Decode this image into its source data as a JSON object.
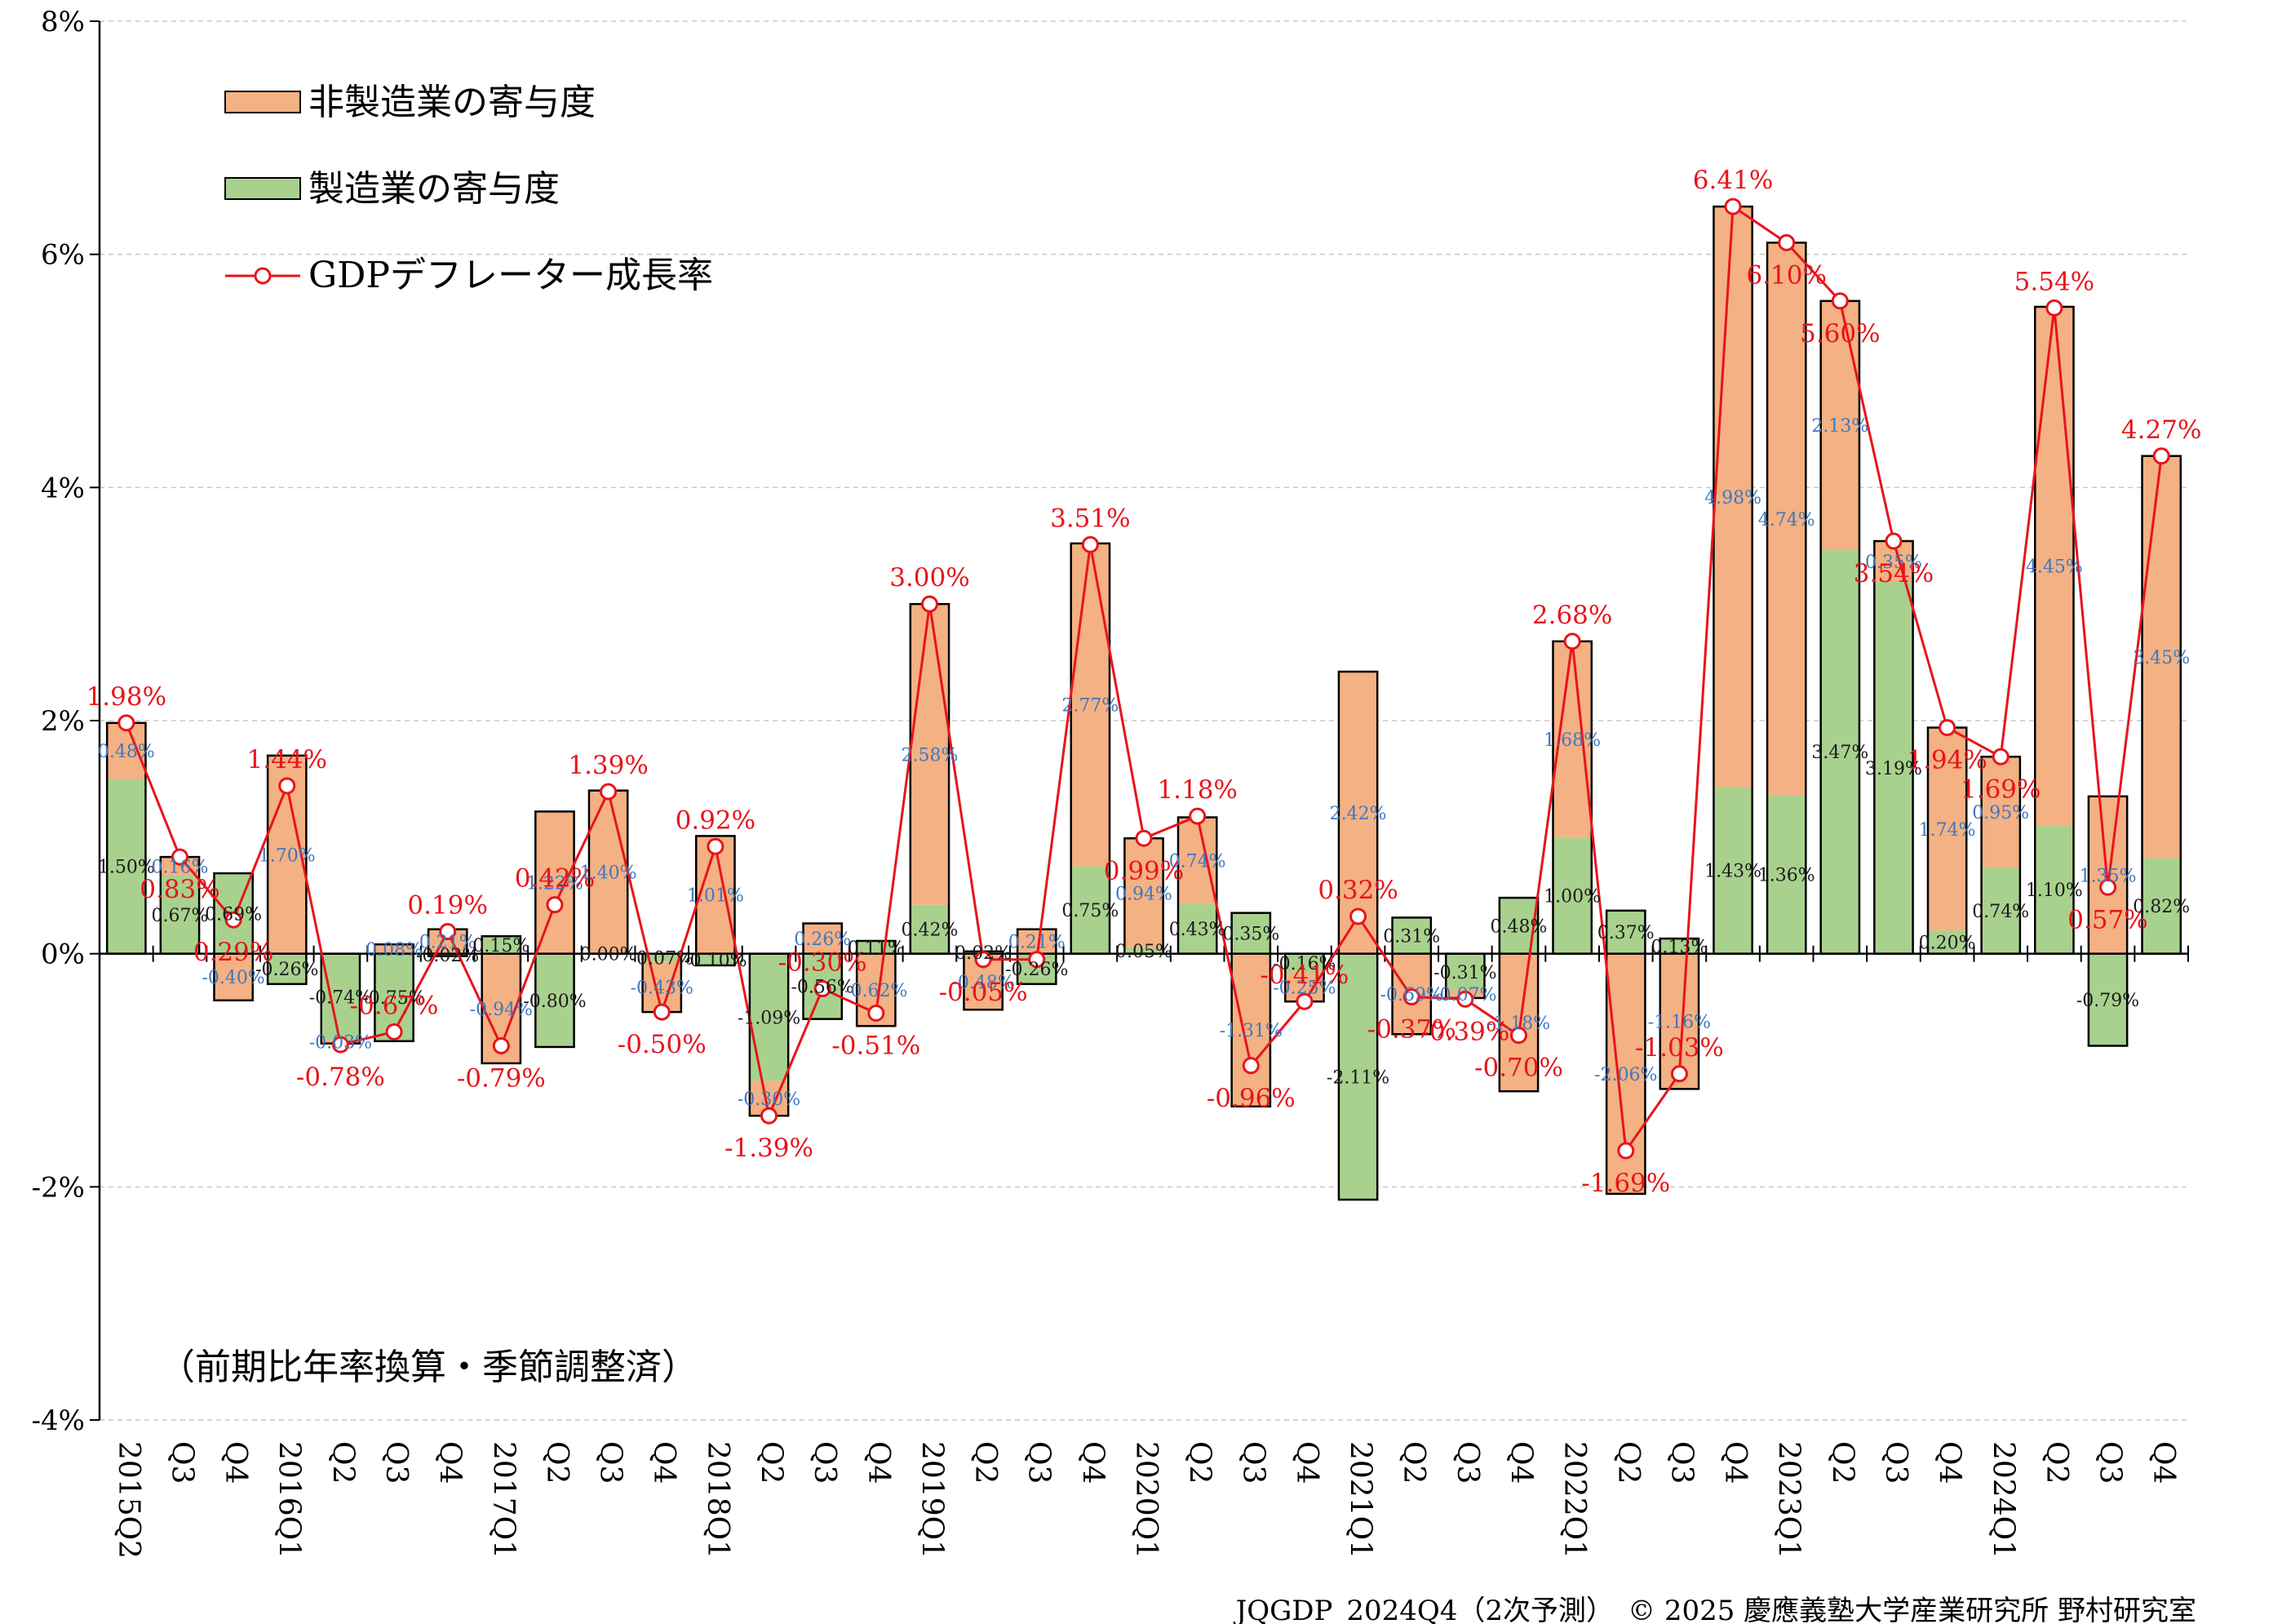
{
  "chart_data": {
    "type": "bar",
    "stacked": true,
    "categories": [
      "2015Q2",
      "Q3",
      "Q4",
      "2016Q1",
      "Q2",
      "Q3",
      "Q4",
      "2017Q1",
      "Q2",
      "Q3",
      "Q4",
      "2018Q1",
      "Q2",
      "Q3",
      "Q4",
      "2019Q1",
      "Q2",
      "Q3",
      "Q4",
      "2020Q1",
      "Q2",
      "Q3",
      "Q4",
      "2021Q1",
      "Q2",
      "Q3",
      "Q4",
      "2022Q1",
      "Q2",
      "Q3",
      "Q4",
      "2023Q1",
      "Q2",
      "Q3",
      "Q4",
      "2024Q1",
      "Q2",
      "Q3",
      "Q4"
    ],
    "series": [
      {
        "name": "非製造業の寄与度",
        "color": "#f4b183",
        "values": [
          0.48,
          0.16,
          -0.4,
          1.7,
          -0.03,
          0.08,
          0.21,
          -0.94,
          1.22,
          1.4,
          -0.43,
          1.01,
          -0.3,
          0.26,
          -0.62,
          2.58,
          -0.48,
          0.21,
          2.77,
          0.94,
          0.74,
          -1.31,
          -0.25,
          2.42,
          -0.69,
          -0.07,
          -1.18,
          1.68,
          -2.06,
          -1.16,
          4.98,
          4.74,
          2.13,
          0.35,
          1.74,
          0.95,
          4.45,
          1.35,
          3.45
        ],
        "labels": [
          "0.48%",
          "0.16%",
          "-0.40%",
          "1.70%",
          "-0.03%",
          "0.08%",
          "0.21%",
          "-0.94%",
          "1.22%",
          "1.40%",
          "-0.43%",
          "1.01%",
          "-0.30%",
          "0.26%",
          "-0.62%",
          "2.58%",
          "-0.48%",
          "0.21%",
          "2.77%",
          "0.94%",
          "0.74%",
          "-1.31%",
          "-0.25%",
          "2.42%",
          "-0.69%",
          "-0.07%",
          "-1.18%",
          "1.68%",
          "-2.06%",
          "-1.16%",
          "4.98%",
          "4.74%",
          "2.13%",
          "0.35%",
          "1.74%",
          "0.95%",
          "4.45%",
          "1.35%",
          "3.45%"
        ]
      },
      {
        "name": "製造業の寄与度",
        "color": "#a9d18e",
        "values": [
          1.5,
          0.67,
          0.69,
          -0.26,
          -0.74,
          -0.75,
          -0.02,
          0.15,
          -0.8,
          0.0,
          -0.07,
          -0.1,
          -1.09,
          -0.56,
          0.11,
          0.42,
          0.02,
          -0.26,
          0.75,
          0.05,
          0.43,
          0.35,
          -0.16,
          -2.11,
          0.31,
          -0.31,
          0.48,
          1.0,
          0.37,
          0.13,
          1.43,
          1.36,
          3.47,
          3.19,
          0.2,
          0.74,
          1.1,
          -0.79,
          0.82
        ],
        "labels": [
          "1.50%",
          "0.67%",
          "0.69%",
          "-0.26%",
          "-0.74%",
          "-0.75%",
          "-0.02%",
          "0.15%",
          "-0.80%",
          "0.00%",
          "-0.07%",
          "-0.10%",
          "-1.09%",
          "-0.56%",
          "0.11%",
          "0.42%",
          "0.02%",
          "-0.26%",
          "0.75%",
          "0.05%",
          "0.43%",
          "0.35%",
          "-0.16%",
          "-2.11%",
          "0.31%",
          "-0.31%",
          "0.48%",
          "1.00%",
          "0.37%",
          "0.13%",
          "1.43%",
          "1.36%",
          "3.47%",
          "3.19%",
          "0.20%",
          "0.74%",
          "1.10%",
          "-0.79%",
          "0.82%"
        ]
      },
      {
        "name": "GDPデフレーター成長率",
        "type": "line",
        "color": "#e8141b",
        "values": [
          1.98,
          0.83,
          0.29,
          1.44,
          -0.78,
          -0.67,
          0.19,
          -0.79,
          0.42,
          1.39,
          -0.5,
          0.92,
          -1.39,
          -0.3,
          -0.51,
          3.0,
          -0.05,
          -0.05,
          3.51,
          0.99,
          1.18,
          -0.96,
          -0.41,
          0.32,
          -0.37,
          -0.39,
          -0.7,
          2.68,
          -1.69,
          -1.03,
          6.41,
          6.1,
          5.6,
          3.54,
          1.94,
          1.69,
          5.54,
          0.57,
          4.27
        ],
        "labels": [
          "1.98%",
          "0.83%",
          "0.29%",
          "1.44%",
          "-0.78%",
          "-0.67%",
          "0.19%",
          "-0.79%",
          "0.42%",
          "1.39%",
          "-0.50%",
          "0.92%",
          "-1.39%",
          "-0.30%",
          "-0.51%",
          "3.00%",
          "-0.05%",
          "",
          "3.51%",
          "0.99%",
          "1.18%",
          "-0.96%",
          "-0.41%",
          "0.32%",
          "-0.37%",
          "-0.39%",
          "-0.70%",
          "2.68%",
          "-1.69%",
          "-1.03%",
          "6.41%",
          "6.10%",
          "5.60%",
          "3.54%",
          "1.94%",
          "1.69%",
          "5.54%",
          "0.57%",
          "4.27%"
        ]
      }
    ],
    "ylim": [
      -4,
      8
    ],
    "yticks": [
      -4,
      -2,
      0,
      2,
      4,
      6,
      8
    ],
    "ytick_labels": [
      "-4%",
      "-2%",
      "0%",
      "2%",
      "4%",
      "6%",
      "8%"
    ],
    "grid": true,
    "legend_position": "top-left",
    "note": "（前期比年率換算・季節調整済）",
    "footer": "JQGDP_2024Q4（2次予測）　© 2025 慶應義塾大学産業研究所 野村研究室"
  }
}
